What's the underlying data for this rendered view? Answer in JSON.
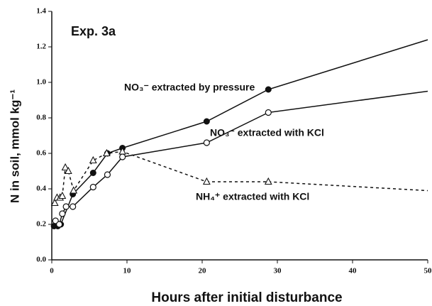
{
  "chart_data": {
    "type": "line",
    "annotations": [
      "Exp. 3a",
      "NO₃⁻ extracted by pressure",
      "NO₃⁻ extracted with KCl",
      "NH₄⁺ extracted with KCl"
    ],
    "x_label": "Hours after initial disturbance",
    "y_label": "N in soil, mmol kg⁻¹",
    "xlim": [
      0,
      50
    ],
    "ylim": [
      0,
      1.4
    ],
    "xticks": [
      0,
      10,
      20,
      30,
      40,
      50
    ],
    "yticks": [
      {
        "value": 0,
        "label": "0.0"
      },
      {
        "value": 0.2,
        "label": "0.2"
      },
      {
        "value": 0.4,
        "label": "0.4"
      },
      {
        "value": 0.6,
        "label": "0.6"
      },
      {
        "value": 0.8,
        "label": "0.8"
      },
      {
        "value": 1.0,
        "label": "1.0"
      },
      {
        "value": 1.2,
        "label": "1.2"
      },
      {
        "value": 1.4,
        "label": "1.4"
      }
    ],
    "series": [
      {
        "marker": "filled-circle",
        "dash": false,
        "color": "#111",
        "x": [
          0.3,
          0.8,
          1.2,
          2.8,
          5.5,
          7.4,
          9.4,
          20.6,
          28.8
        ],
        "values": [
          0.19,
          0.19,
          0.2,
          0.37,
          0.49,
          0.6,
          0.63,
          0.78,
          0.96
        ],
        "line_to": [
          50,
          1.24
        ]
      },
      {
        "marker": "open-circle",
        "dash": false,
        "color": "#111",
        "x": [
          0.5,
          1.0,
          1.4,
          1.9,
          2.8,
          5.5,
          7.4,
          9.4,
          20.6,
          28.8
        ],
        "values": [
          0.22,
          0.2,
          0.26,
          0.3,
          0.3,
          0.41,
          0.48,
          0.58,
          0.66,
          0.83
        ],
        "line_to": [
          50,
          0.95
        ]
      },
      {
        "marker": "open-triangle",
        "dash": true,
        "color": "#111",
        "x": [
          0.4,
          0.7,
          1.1,
          1.4,
          1.8,
          2.2,
          2.9,
          5.5,
          7.3,
          9.4,
          20.6,
          28.8
        ],
        "values": [
          0.32,
          0.35,
          0.35,
          0.36,
          0.52,
          0.5,
          0.39,
          0.56,
          0.6,
          0.61,
          0.44,
          0.44
        ],
        "line_to": [
          50,
          0.39
        ]
      }
    ]
  }
}
